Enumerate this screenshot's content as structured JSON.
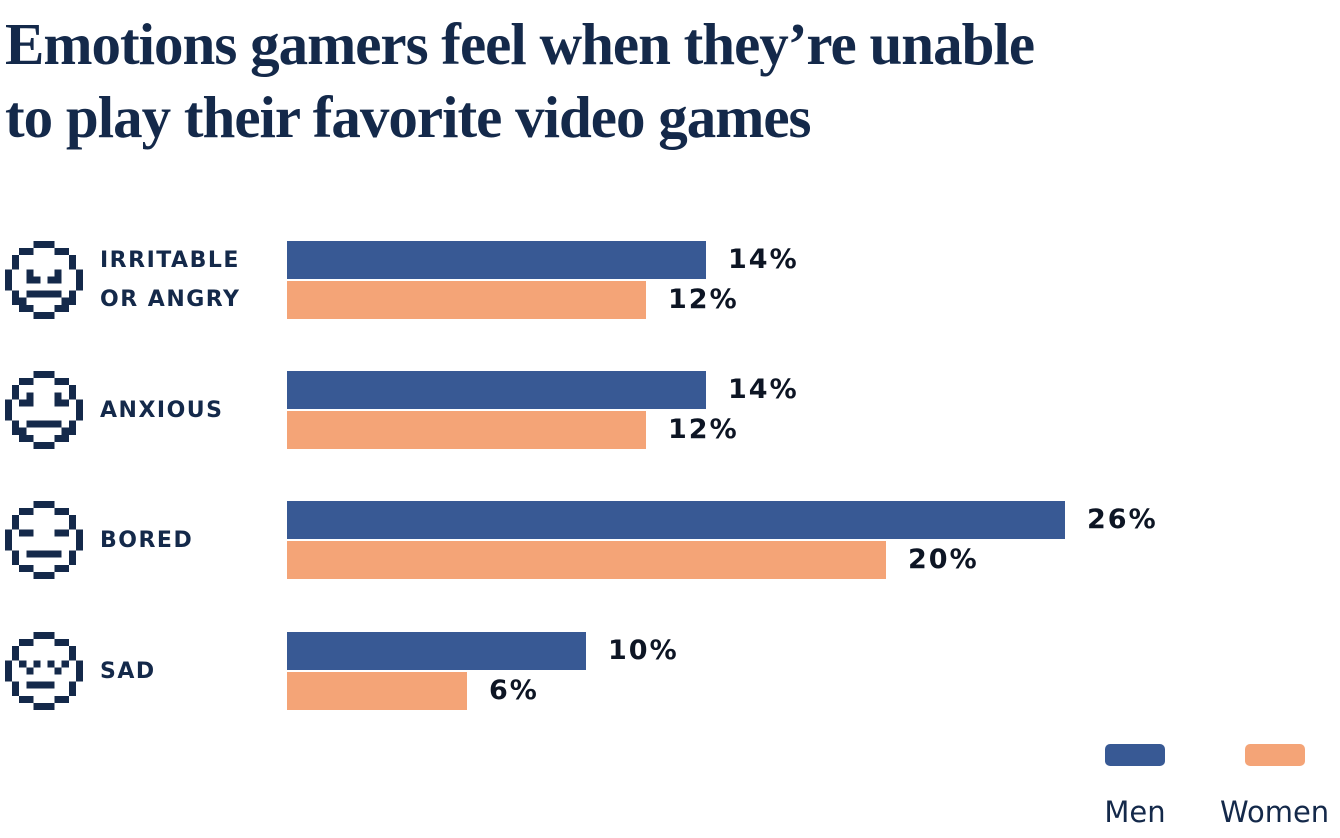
{
  "title": "Emotions gamers feel when they’re unable to play their favorite video games",
  "title_lines": [
    "Emotions gamers feel when they’re unable",
    "to play their favorite video games"
  ],
  "colors": {
    "men": "#385994",
    "women": "#f4a477",
    "navy_text": "#14294a",
    "value_text": "#0d1524",
    "background": "#ffffff"
  },
  "legend": {
    "position": "bottom-right",
    "items": [
      {
        "label": "Men",
        "color": "#385994",
        "icon": "men-swatch"
      },
      {
        "label": "Women",
        "color": "#f4a477",
        "icon": "women-swatch"
      }
    ]
  },
  "chart_data": {
    "type": "bar",
    "orientation": "horizontal",
    "unit": "%",
    "title": "Emotions gamers feel when they’re unable to play their favorite video games",
    "categories": [
      "Irritable or angry",
      "Anxious",
      "Bored",
      "Sad"
    ],
    "category_label_lines": [
      [
        "IRRITABLE",
        "OR ANGRY"
      ],
      [
        "ANXIOUS"
      ],
      [
        "BORED"
      ],
      [
        "SAD"
      ]
    ],
    "category_icons": [
      "angry-face-icon",
      "anxious-face-icon",
      "bored-face-icon",
      "sad-face-icon"
    ],
    "series": [
      {
        "name": "Men",
        "color": "#385994",
        "values": [
          14,
          14,
          26,
          10
        ]
      },
      {
        "name": "Women",
        "color": "#f4a477",
        "values": [
          12,
          12,
          20,
          6
        ]
      }
    ],
    "value_labels": {
      "Men": [
        "14%",
        "14%",
        "26%",
        "10%"
      ],
      "Women": [
        "12%",
        "12%",
        "20%",
        "6%"
      ]
    },
    "xlim": [
      0,
      30
    ],
    "grid": false,
    "axis_ticks": "none",
    "legend_position": "bottom-right"
  }
}
